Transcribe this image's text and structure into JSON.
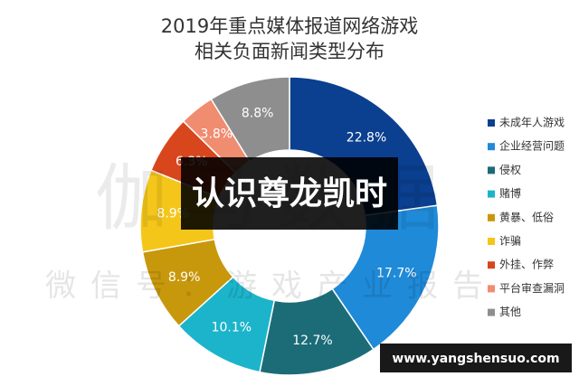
{
  "chart_data": {
    "type": "donut",
    "title": [
      "2019年重点媒体报道网络游戏",
      "相关负面新闻类型分布"
    ],
    "categories": [
      "未成年人游戏",
      "企业经营问题",
      "侵权",
      "赌博",
      "黄暴、低俗",
      "诈骗",
      "外挂、作弊",
      "平台审查漏洞",
      "其他"
    ],
    "values": [
      22.8,
      17.7,
      12.7,
      10.1,
      8.9,
      8.9,
      6.3,
      3.8,
      8.8
    ],
    "value_labels": [
      "22.8%",
      "17.7%",
      "12.7%",
      "10.1%",
      "8.9%",
      "8.9%",
      "6.3%",
      "3.8%",
      "8.8%"
    ],
    "colors": [
      "#0b3f8f",
      "#1f8ad8",
      "#1c6c78",
      "#1cb4cb",
      "#c8980c",
      "#f5c61a",
      "#d8461d",
      "#f08c70",
      "#8e8e8e"
    ],
    "legend": "right"
  },
  "overlays": {
    "watermark": "伽马数据",
    "watermark_sub": "微信号：游戏产业报告",
    "banner": "认识尊龙凯时",
    "url": "www.yangshensuo.com"
  }
}
